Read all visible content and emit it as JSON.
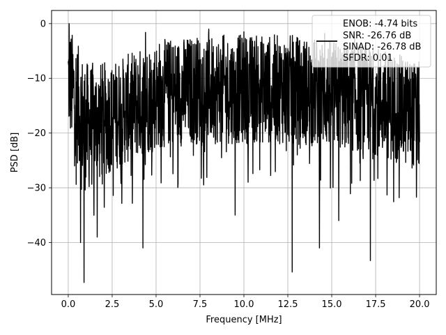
{
  "chart_data": {
    "type": "line",
    "title": "",
    "xlabel": "Frequency [MHz]",
    "ylabel": "PSD [dB]",
    "xlim": [
      -0.95,
      20.95
    ],
    "ylim": [
      -49.5,
      2.4
    ],
    "grid": true,
    "x_ticks": [
      0.0,
      2.5,
      5.0,
      7.5,
      10.0,
      12.5,
      15.0,
      17.5,
      20.0
    ],
    "x_tick_labels": [
      "0.0",
      "2.5",
      "5.0",
      "7.5",
      "10.0",
      "12.5",
      "15.0",
      "17.5",
      "20.0"
    ],
    "y_ticks": [
      0,
      -10,
      -20,
      -30,
      -40
    ],
    "y_tick_labels": [
      "0",
      "−10",
      "−20",
      "−30",
      "−40"
    ],
    "legend": {
      "placement": "top-right",
      "entries": [
        "ENOB: -4.74 bits",
        "SNR: -26.76 dB",
        "SINAD: -26.78 dB",
        "SFDR: 0.01"
      ]
    },
    "series": [
      {
        "color": "#000000",
        "x_range": [
          0.0,
          20.0
        ],
        "noise_envelope": [
          {
            "x": 0.0,
            "mean": -10,
            "spread": 10
          },
          {
            "x": 1.0,
            "mean": -19,
            "spread": 12
          },
          {
            "x": 2.5,
            "mean": -17,
            "spread": 10
          },
          {
            "x": 5.0,
            "mean": -13,
            "spread": 10
          },
          {
            "x": 7.5,
            "mean": -12,
            "spread": 10
          },
          {
            "x": 10.0,
            "mean": -12,
            "spread": 10
          },
          {
            "x": 12.5,
            "mean": -12,
            "spread": 10
          },
          {
            "x": 15.0,
            "mean": -13,
            "spread": 10
          },
          {
            "x": 17.5,
            "mean": -14,
            "spread": 10
          },
          {
            "x": 20.0,
            "mean": -17,
            "spread": 10
          }
        ],
        "peaks": [
          {
            "x": 0.05,
            "y": 0
          },
          {
            "x": 8.0,
            "y": -1
          },
          {
            "x": 10.0,
            "y": -1.5
          },
          {
            "x": 14.6,
            "y": -1.8
          },
          {
            "x": 4.4,
            "y": -1.6
          },
          {
            "x": 16.3,
            "y": -2.5
          }
        ],
        "troughs": [
          {
            "x": 0.9,
            "y": -47.3
          },
          {
            "x": 0.7,
            "y": -40
          },
          {
            "x": 1.65,
            "y": -39
          },
          {
            "x": 4.25,
            "y": -41
          },
          {
            "x": 12.75,
            "y": -45.4
          },
          {
            "x": 14.3,
            "y": -41
          },
          {
            "x": 17.2,
            "y": -43.3
          },
          {
            "x": 9.5,
            "y": -35
          },
          {
            "x": 15.4,
            "y": -36
          }
        ]
      }
    ]
  }
}
